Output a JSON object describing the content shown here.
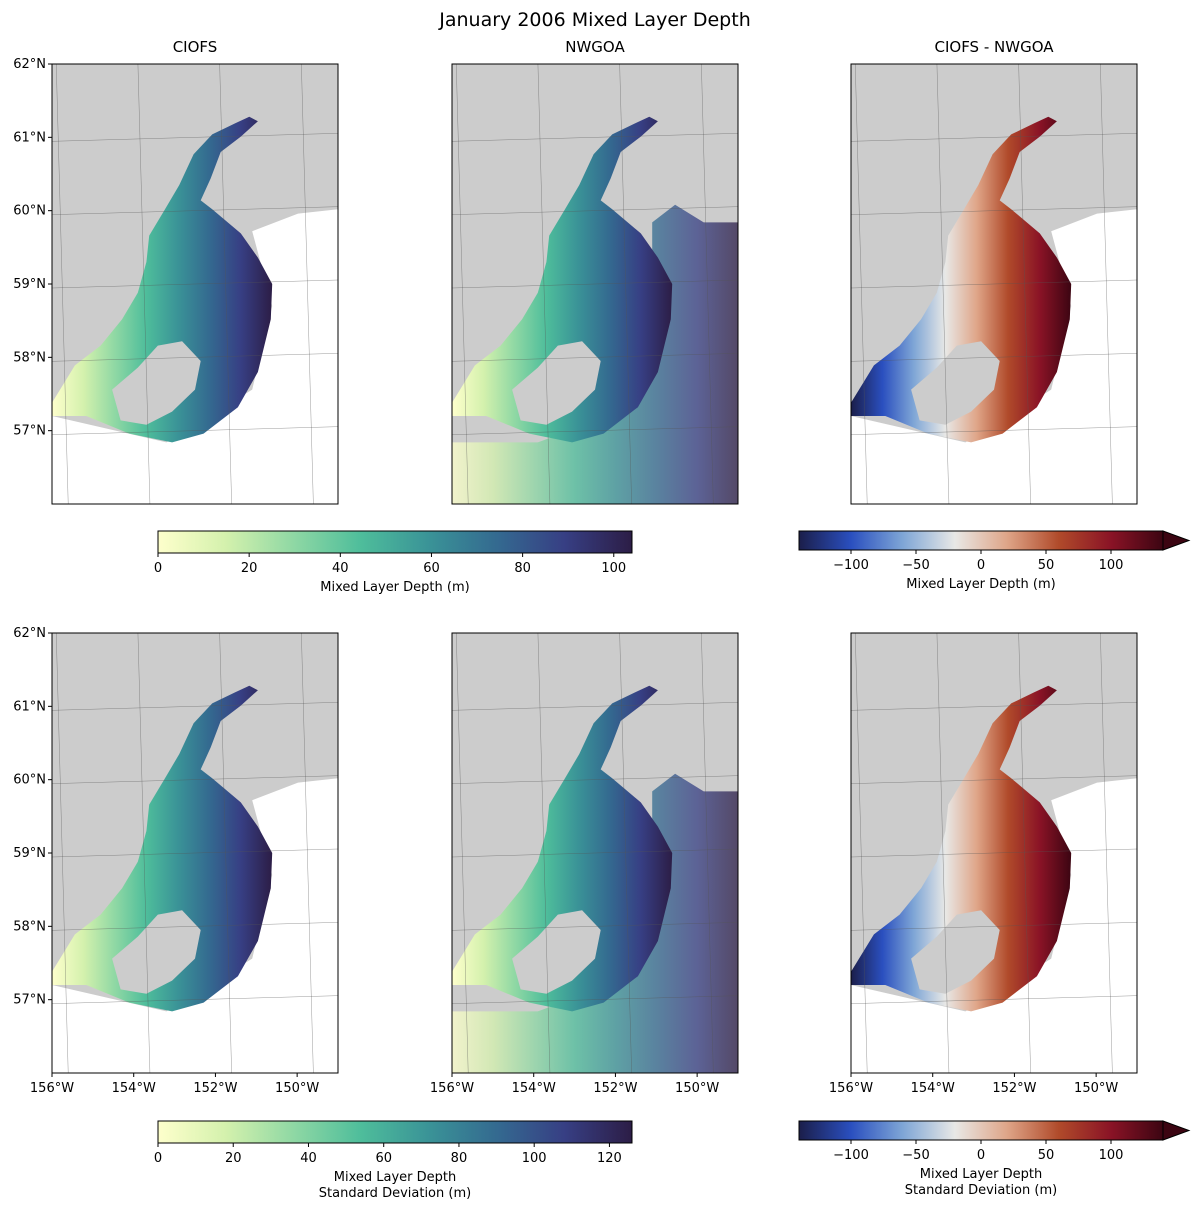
{
  "figure": {
    "title": "January 2006 Mixed Layer Depth",
    "columns": [
      "CIOFS",
      "NWGOA",
      "CIOFS - NWGOA"
    ]
  },
  "colors": {
    "land": "#cccccc",
    "frame": "#000000",
    "grid": "#555555",
    "deep_cmap": [
      "#feffcc",
      "#d4f1ad",
      "#8fd8a4",
      "#4ebd9b",
      "#3a9397",
      "#346a90",
      "#373f84",
      "#2c1d46"
    ],
    "diff_cmap": [
      "#1b1e4a",
      "#2a4fbf",
      "#7fa6d6",
      "#e8e8e6",
      "#dfa588",
      "#b04a2a",
      "#8a1326",
      "#3c0512"
    ]
  },
  "chart_data": [
    {
      "type": "heatmap",
      "name": "ciofs-mean",
      "title": "CIOFS",
      "x_ticks": [
        "156°W",
        "154°W",
        "152°W",
        "150°W"
      ],
      "y_ticks": [
        "62°N",
        "61°N",
        "60°N",
        "59°N",
        "58°N",
        "57°N"
      ],
      "xlim": [
        -156,
        -149
      ],
      "ylim": [
        56,
        62
      ],
      "show_x_ticks": false,
      "show_y_ticks": true
    },
    {
      "type": "heatmap",
      "name": "nwgoa-mean",
      "title": "NWGOA",
      "xlim": [
        -156,
        -149
      ],
      "ylim": [
        56,
        62
      ],
      "show_x_ticks": false,
      "show_y_ticks": false
    },
    {
      "type": "heatmap",
      "name": "diff-mean",
      "title": "CIOFS - NWGOA",
      "xlim": [
        -156,
        -149
      ],
      "ylim": [
        56,
        62
      ],
      "show_x_ticks": false,
      "show_y_ticks": false
    },
    {
      "type": "heatmap",
      "name": "ciofs-std",
      "x_ticks": [
        "156°W",
        "154°W",
        "152°W",
        "150°W"
      ],
      "y_ticks": [
        "62°N",
        "61°N",
        "60°N",
        "59°N",
        "58°N",
        "57°N"
      ],
      "xlim": [
        -156,
        -149
      ],
      "ylim": [
        56,
        62
      ],
      "show_x_ticks": true,
      "show_y_ticks": true
    },
    {
      "type": "heatmap",
      "name": "nwgoa-std",
      "x_ticks": [
        "156°W",
        "154°W",
        "152°W",
        "150°W"
      ],
      "xlim": [
        -156,
        -149
      ],
      "ylim": [
        56,
        62
      ],
      "show_x_ticks": true,
      "show_y_ticks": false
    },
    {
      "type": "heatmap",
      "name": "diff-std",
      "x_ticks": [
        "156°W",
        "154°W",
        "152°W",
        "150°W"
      ],
      "xlim": [
        -156,
        -149
      ],
      "ylim": [
        56,
        62
      ],
      "show_x_ticks": true,
      "show_y_ticks": false
    }
  ],
  "colorbars": [
    {
      "name": "mld-mean-colorbar",
      "ticks": [
        0,
        20,
        40,
        60,
        80,
        100
      ],
      "tick_labels": [
        "0",
        "20",
        "40",
        "60",
        "80",
        "100"
      ],
      "range": [
        0,
        104
      ],
      "label": [
        "Mixed Layer Depth (m)"
      ],
      "extend": "neither"
    },
    {
      "name": "diff-mean-colorbar",
      "ticks": [
        -100,
        -50,
        0,
        50,
        100
      ],
      "tick_labels": [
        "−100",
        "−50",
        "0",
        "50",
        "100"
      ],
      "range": [
        -140,
        140
      ],
      "label": [
        "Mixed Layer Depth (m)"
      ],
      "extend": "max"
    },
    {
      "name": "mld-std-colorbar",
      "ticks": [
        0,
        20,
        40,
        60,
        80,
        100,
        120
      ],
      "tick_labels": [
        "0",
        "20",
        "40",
        "60",
        "80",
        "100",
        "120"
      ],
      "range": [
        0,
        126
      ],
      "label": [
        "Mixed Layer Depth",
        "Standard Deviation (m)"
      ],
      "extend": "neither"
    },
    {
      "name": "diff-std-colorbar",
      "ticks": [
        -100,
        -50,
        0,
        50,
        100
      ],
      "tick_labels": [
        "−100",
        "−50",
        "0",
        "50",
        "100"
      ],
      "range": [
        -140,
        140
      ],
      "label": [
        "Mixed Layer Depth",
        "Standard Deviation (m)"
      ],
      "extend": "max"
    }
  ]
}
